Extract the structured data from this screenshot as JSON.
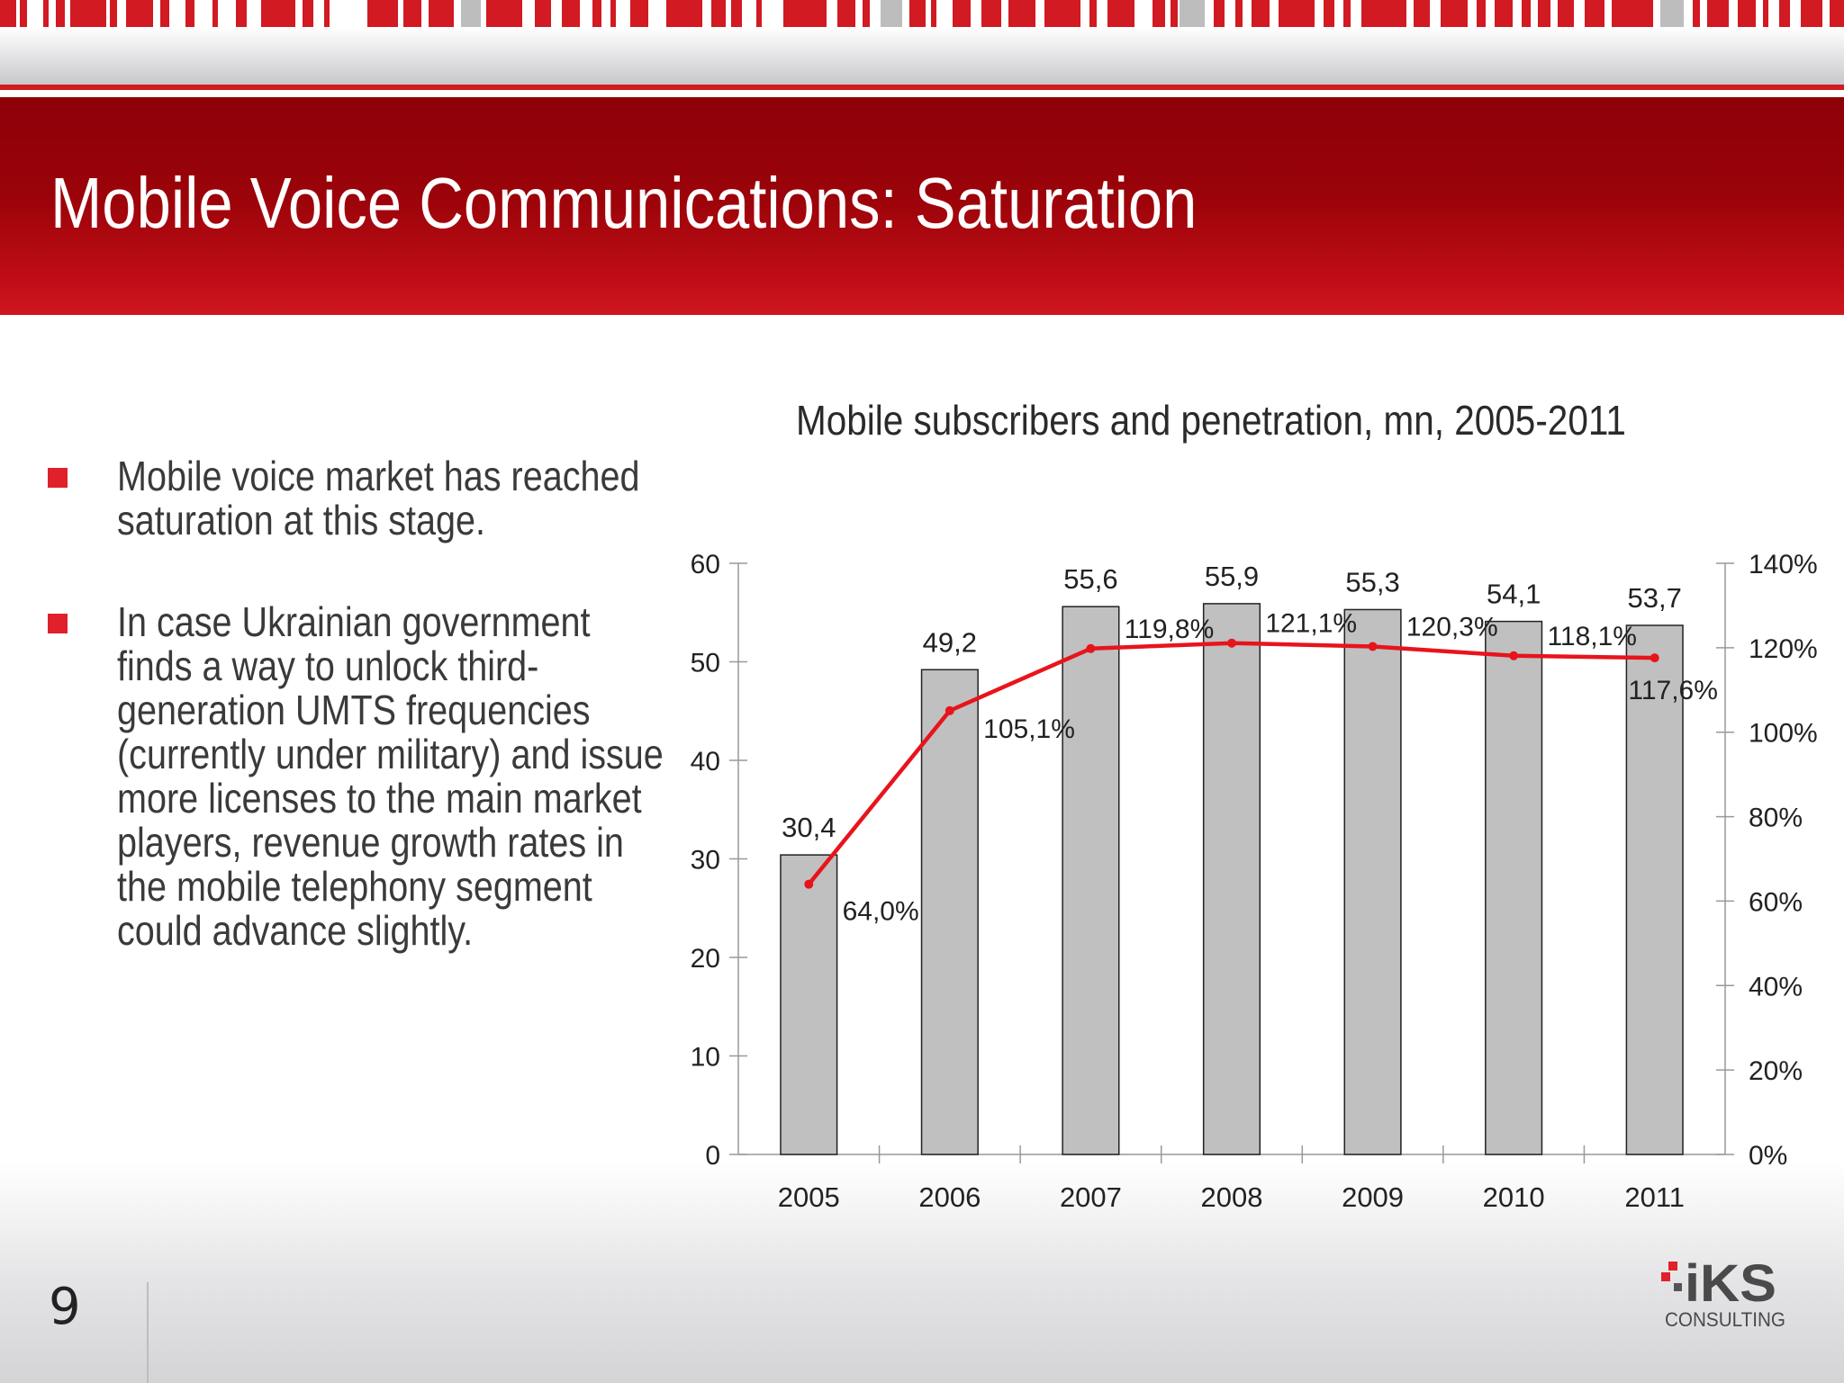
{
  "slide": {
    "title": "Mobile Voice Communications:  Saturation",
    "page_number": "9"
  },
  "bullets": [
    "Mobile voice market has reached saturation at this stage.",
    "In case Ukrainian government finds a way to unlock third-generation UMTS frequencies (currently under military) and issue more licenses to the main market players, revenue growth rates in the mobile telephony segment could advance slightly."
  ],
  "logo": {
    "mark": "iKS",
    "subtitle": "CONSULTING"
  },
  "colors": {
    "brand_red": "#d11a22",
    "title_bar_dark": "#8e0008",
    "bar_fill": "#c0c0c0",
    "line": "#e8141c"
  },
  "chart_data": {
    "type": "bar",
    "title": "Mobile subscribers and penetration, mn, 2005-2011",
    "categories": [
      "2005",
      "2006",
      "2007",
      "2008",
      "2009",
      "2010",
      "2011"
    ],
    "series": [
      {
        "type": "bar",
        "axis": "left",
        "values": [
          30.4,
          49.2,
          55.6,
          55.9,
          55.3,
          54.1,
          53.7
        ],
        "labels": [
          "30,4",
          "49,2",
          "55,6",
          "55,9",
          "55,3",
          "54,1",
          "53,7"
        ]
      },
      {
        "type": "line",
        "axis": "right",
        "values": [
          64.0,
          105.1,
          119.8,
          121.1,
          120.3,
          118.1,
          117.6
        ],
        "labels": [
          "64,0%",
          "105,1%",
          "119,8%",
          "121,1%",
          "120,3%",
          "118,1%",
          "117,6%"
        ]
      }
    ],
    "y_left": {
      "range": [
        0,
        60
      ],
      "ticks": [
        "0",
        "10",
        "20",
        "30",
        "40",
        "50",
        "60"
      ]
    },
    "y_right": {
      "range": [
        0,
        140
      ],
      "ticks": [
        "0%",
        "20%",
        "40%",
        "60%",
        "80%",
        "100%",
        "120%",
        "140%"
      ]
    },
    "grid": false,
    "legend": "none"
  }
}
